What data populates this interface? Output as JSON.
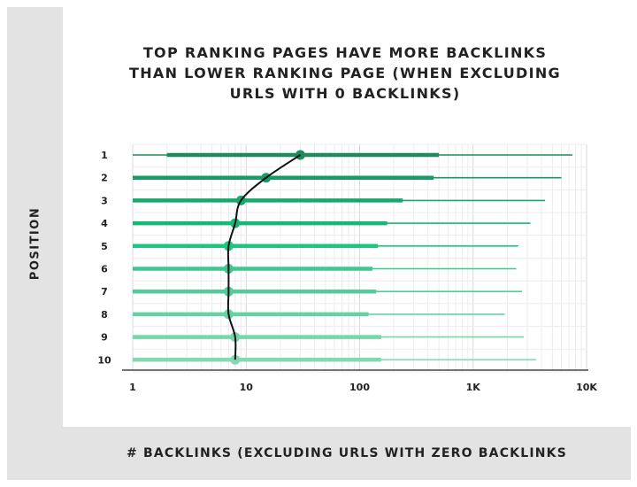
{
  "chart_data": {
    "type": "range-dot",
    "title_lines": [
      "TOP RANKING PAGES HAVE MORE BACKLINKS",
      "THAN LOWER RANKING PAGE (WHEN EXCLUDING",
      "URLS WITH 0 BACKLINKS)"
    ],
    "xlabel": "# BACKLINKS (EXCLUDING URLS WITH ZERO BACKLINKS",
    "ylabel": "POSITION",
    "x_scale": "log",
    "xlim": [
      1,
      10000
    ],
    "x_ticks": [
      {
        "value": 1,
        "label": "1"
      },
      {
        "value": 10,
        "label": "10"
      },
      {
        "value": 100,
        "label": "100"
      },
      {
        "value": 1000,
        "label": "1K"
      },
      {
        "value": 10000,
        "label": "10K"
      }
    ],
    "grid": true,
    "rows": [
      {
        "position": "1",
        "low": 1,
        "q1": 2,
        "median": 30,
        "q3": 500,
        "high": 7500,
        "color": "#1e8a5c"
      },
      {
        "position": "2",
        "low": 1,
        "q1": 1,
        "median": 15,
        "q3": 450,
        "high": 6000,
        "color": "#1a9966"
      },
      {
        "position": "3",
        "low": 1,
        "q1": 1,
        "median": 9,
        "q3": 240,
        "high": 4300,
        "color": "#17a86d"
      },
      {
        "position": "4",
        "low": 1,
        "q1": 1,
        "median": 8,
        "q3": 175,
        "high": 3200,
        "color": "#16b876"
      },
      {
        "position": "5",
        "low": 1,
        "q1": 1,
        "median": 7,
        "q3": 145,
        "high": 2500,
        "color": "#1cc681"
      },
      {
        "position": "6",
        "low": 1,
        "q1": 1,
        "median": 7,
        "q3": 130,
        "high": 2400,
        "color": "#3cc98d"
      },
      {
        "position": "7",
        "low": 1,
        "q1": 1,
        "median": 7,
        "q3": 140,
        "high": 2700,
        "color": "#52cd97"
      },
      {
        "position": "8",
        "low": 1,
        "q1": 1,
        "median": 7,
        "q3": 120,
        "high": 1900,
        "color": "#64d2a1"
      },
      {
        "position": "9",
        "low": 1,
        "q1": 1,
        "median": 8,
        "q3": 155,
        "high": 2800,
        "color": "#74d6aa"
      },
      {
        "position": "10",
        "low": 1,
        "q1": 1,
        "median": 8,
        "q3": 155,
        "high": 3600,
        "color": "#82dab2"
      }
    ],
    "trend_color": "#111111"
  }
}
